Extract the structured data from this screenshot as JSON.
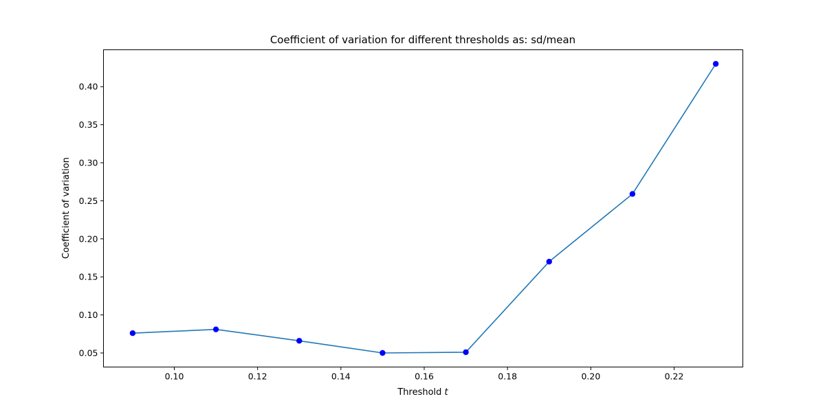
{
  "chart_data": {
    "type": "line",
    "title": "Coefficient of variation for different thresholds as: sd/mean",
    "xlabel_prefix": "Threshold ",
    "xlabel_var": "t",
    "ylabel": "Coefficient of variation",
    "xlim": [
      0.083,
      0.2365
    ],
    "ylim": [
      0.0315,
      0.4485
    ],
    "xticks": [
      "0.10",
      "0.12",
      "0.14",
      "0.16",
      "0.18",
      "0.20",
      "0.22"
    ],
    "yticks": [
      "0.05",
      "0.10",
      "0.15",
      "0.20",
      "0.25",
      "0.30",
      "0.35",
      "0.40"
    ],
    "grid": false,
    "series": [
      {
        "x": [
          0.09,
          0.11,
          0.13,
          0.15,
          0.17,
          0.19,
          0.21,
          0.23
        ],
        "y": [
          0.076,
          0.081,
          0.066,
          0.05,
          0.051,
          0.17,
          0.259,
          0.43
        ],
        "line_color": "#1f77b4",
        "marker_color": "#0000ff"
      }
    ]
  }
}
